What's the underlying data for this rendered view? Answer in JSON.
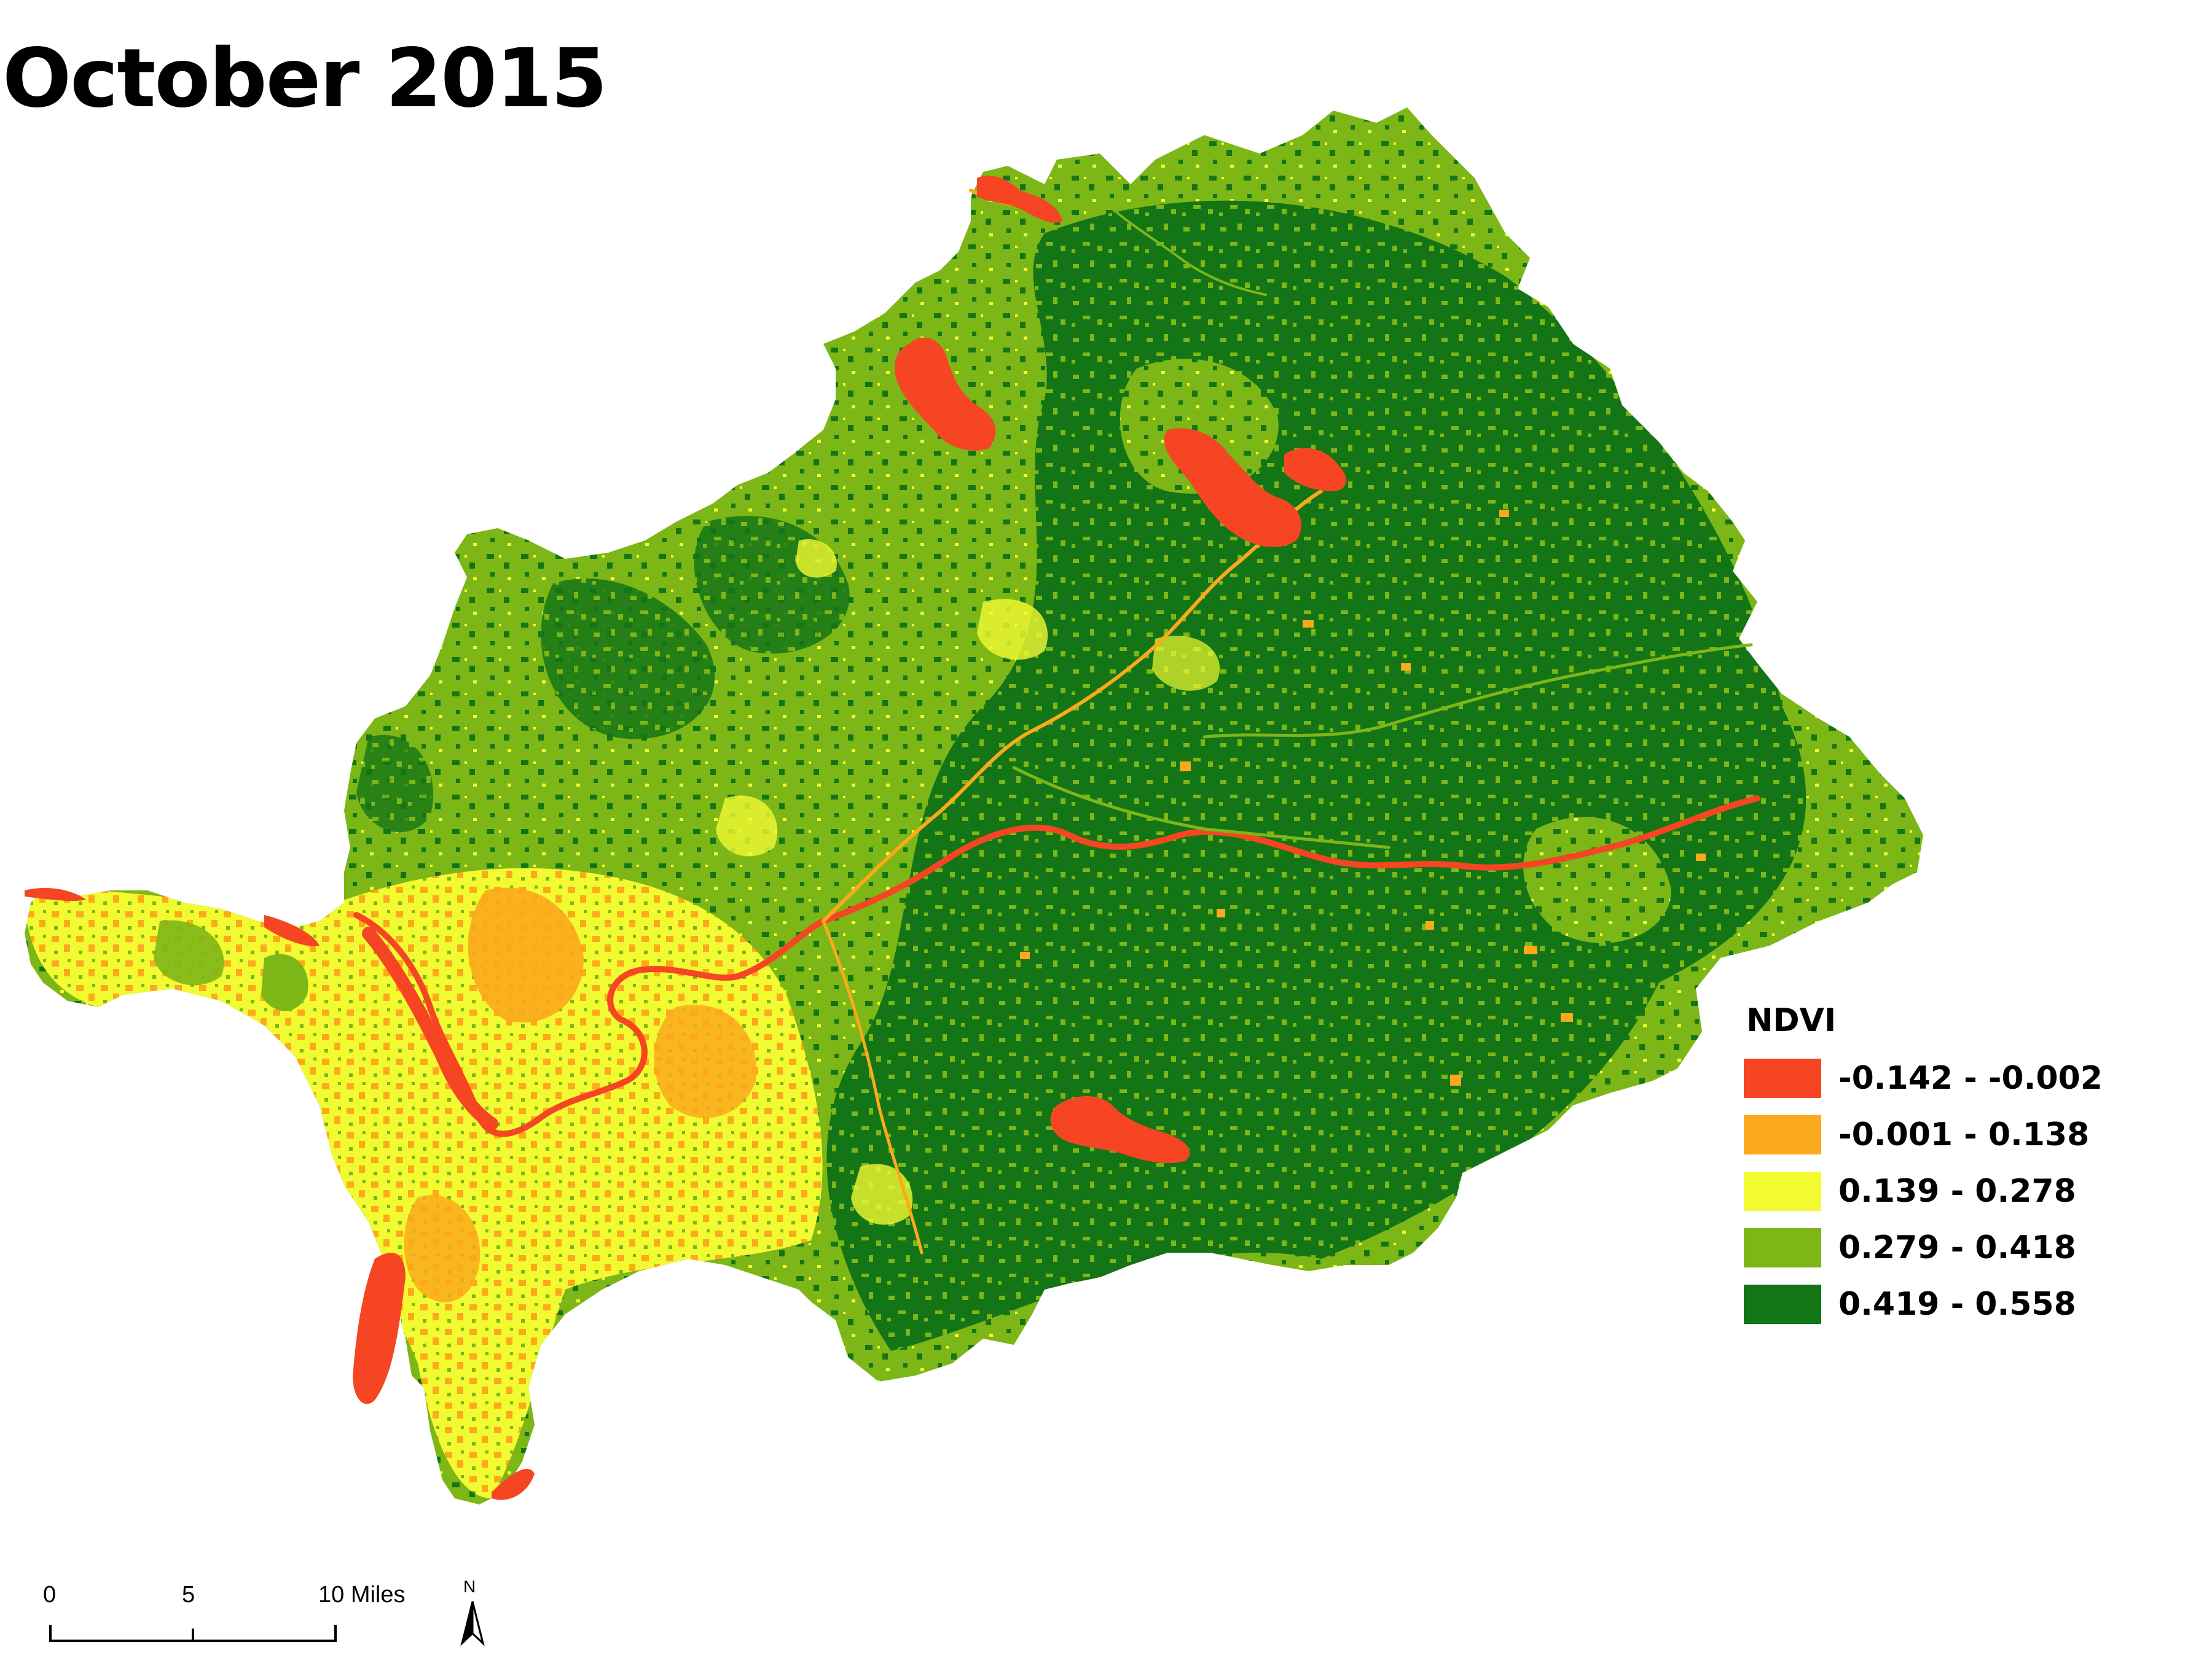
{
  "title": "October 2015",
  "legend": {
    "title": "NDVI",
    "classes": [
      {
        "label": "-0.142 - -0.002",
        "color": "#f64522"
      },
      {
        "label": "-0.001 - 0.138",
        "color": "#fca91c"
      },
      {
        "label": "0.139 - 0.278",
        "color": "#f2fa32"
      },
      {
        "label": "0.279 - 0.418",
        "color": "#7db617"
      },
      {
        "label": "0.419 - 0.558",
        "color": "#137516"
      }
    ]
  },
  "scale_bar": {
    "labels": [
      "0",
      "5",
      "10 Miles"
    ]
  },
  "north_arrow": {
    "letter": "N",
    "icon": "north-arrow-icon"
  }
}
